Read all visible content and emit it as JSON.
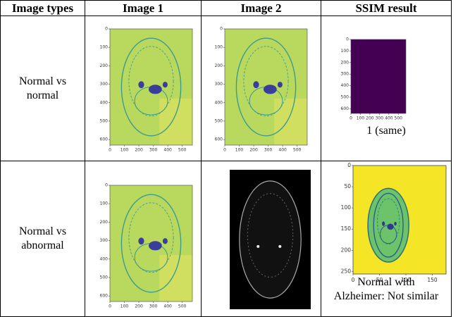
{
  "table": {
    "header": [
      "Image types",
      "Image 1",
      "Image 2",
      "SSIM result"
    ],
    "rows": [
      {
        "type": "Normal vs normal",
        "image1": {
          "xlim": [
            0,
            570
          ],
          "ylim": [
            0,
            630
          ],
          "xticks": [
            0,
            100,
            200,
            300,
            400,
            500
          ],
          "yticks": [
            0,
            100,
            200,
            300,
            400,
            500,
            600
          ]
        },
        "image2": {
          "xlim": [
            0,
            570
          ],
          "ylim": [
            0,
            630
          ],
          "xticks": [
            0,
            100,
            200,
            300,
            400,
            500
          ],
          "yticks": [
            0,
            100,
            200,
            300,
            400,
            500,
            600
          ]
        },
        "ssim": {
          "xlim": [
            0,
            580
          ],
          "ylim": [
            0,
            640
          ],
          "xticks": [
            0,
            100,
            200,
            300,
            400,
            500
          ],
          "yticks": [
            0,
            100,
            200,
            300,
            400,
            500,
            600
          ],
          "caption": "1 (same)"
        }
      },
      {
        "type": "Normal vs abnormal",
        "image1": {
          "xlim": [
            0,
            570
          ],
          "ylim": [
            0,
            630
          ],
          "xticks": [
            0,
            100,
            200,
            300,
            400,
            500
          ],
          "yticks": [
            0,
            100,
            200,
            300,
            400,
            500,
            600
          ]
        },
        "ssim": {
          "xlim": [
            0,
            176
          ],
          "ylim": [
            0,
            256
          ],
          "xticks": [
            0,
            50,
            100,
            150
          ],
          "yticks": [
            0,
            50,
            100,
            150,
            200,
            250
          ],
          "caption": "Normal with Alzheimer: Not similar"
        }
      }
    ]
  }
}
